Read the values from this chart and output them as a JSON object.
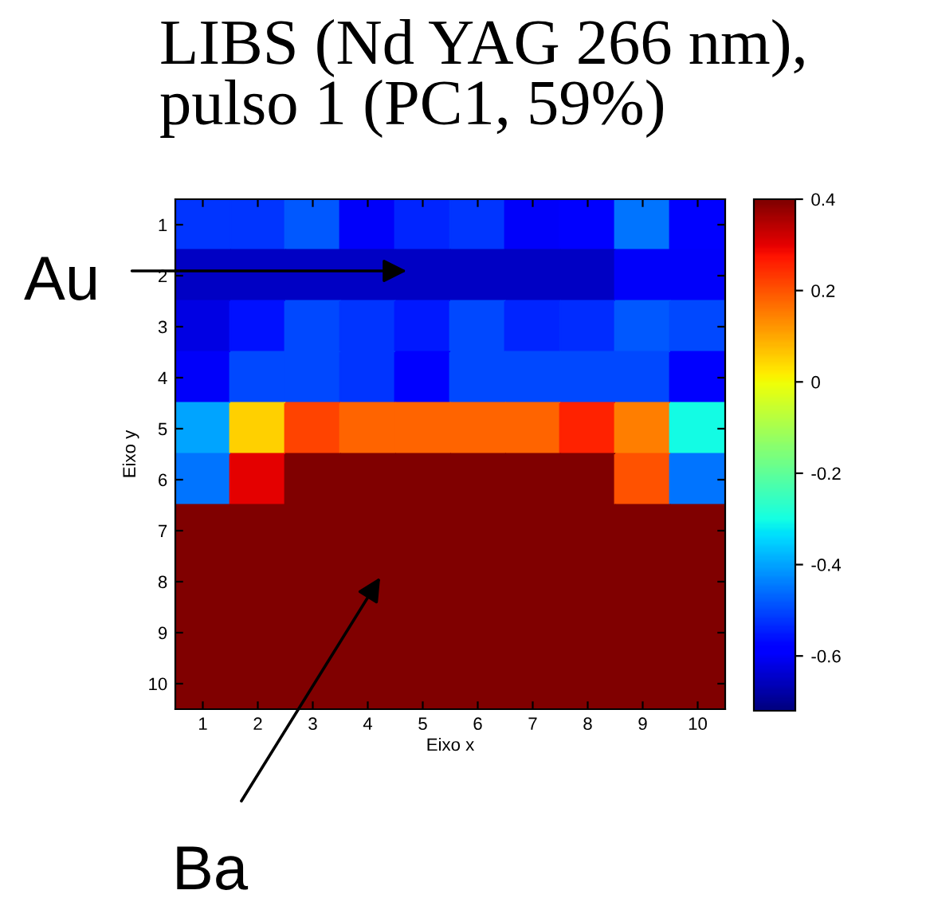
{
  "chart_data": {
    "type": "heatmap",
    "title": "LIBS (Nd YAG 266 nm),\npulso 1 (PC1, 59%)",
    "xlabel": "Eixo x",
    "ylabel": "Eixo y",
    "categories": [
      "1",
      "2",
      "3",
      "4",
      "5",
      "6",
      "7",
      "8",
      "9",
      "10"
    ],
    "y_categories": [
      "1",
      "2",
      "3",
      "4",
      "5",
      "6",
      "7",
      "8",
      "9",
      "10"
    ],
    "cells": [
      [
        -0.52,
        -0.52,
        -0.48,
        -0.6,
        -0.54,
        -0.52,
        -0.6,
        -0.58,
        -0.45,
        -0.58
      ],
      [
        -0.65,
        -0.65,
        -0.65,
        -0.65,
        -0.65,
        -0.65,
        -0.65,
        -0.65,
        -0.6,
        -0.6
      ],
      [
        -0.62,
        -0.56,
        -0.5,
        -0.52,
        -0.55,
        -0.5,
        -0.54,
        -0.53,
        -0.48,
        -0.5
      ],
      [
        -0.6,
        -0.5,
        -0.5,
        -0.52,
        -0.58,
        -0.5,
        -0.5,
        -0.5,
        -0.5,
        -0.58
      ],
      [
        -0.4,
        0.05,
        0.22,
        0.18,
        0.18,
        0.18,
        0.18,
        0.26,
        0.15,
        -0.3
      ],
      [
        -0.45,
        0.3,
        0.4,
        0.4,
        0.4,
        0.4,
        0.4,
        0.4,
        0.2,
        -0.45
      ],
      [
        0.4,
        0.4,
        0.4,
        0.4,
        0.4,
        0.4,
        0.4,
        0.4,
        0.4,
        0.4
      ],
      [
        0.4,
        0.4,
        0.4,
        0.4,
        0.4,
        0.4,
        0.4,
        0.4,
        0.4,
        0.4
      ],
      [
        0.4,
        0.4,
        0.4,
        0.4,
        0.4,
        0.4,
        0.4,
        0.4,
        0.4,
        0.4
      ],
      [
        0.4,
        0.4,
        0.4,
        0.4,
        0.4,
        0.4,
        0.4,
        0.4,
        0.4,
        0.4
      ]
    ],
    "clim": [
      -0.72,
      0.4
    ],
    "cticks": [
      -0.6,
      -0.4,
      -0.2,
      0,
      0.2,
      0.4
    ],
    "annotations": [
      "Au",
      "Ba"
    ]
  }
}
